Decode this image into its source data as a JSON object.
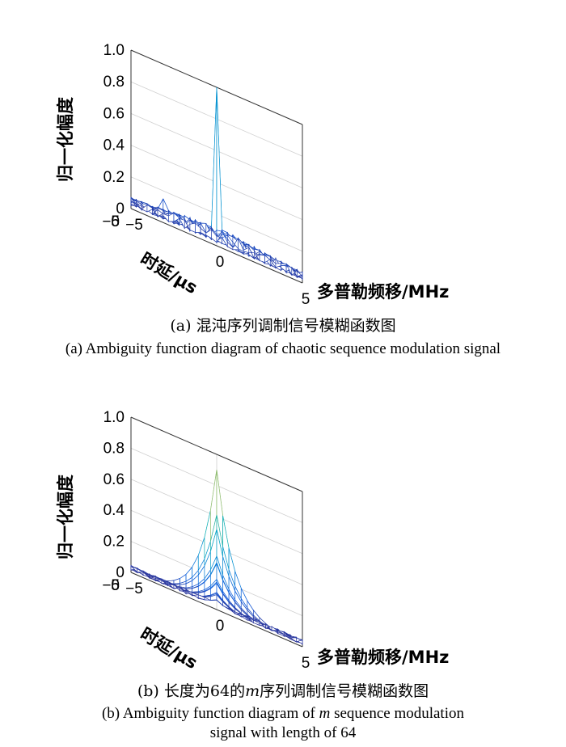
{
  "chart_data": [
    {
      "type": "surface",
      "panel": "a",
      "zlabel": "归一化幅度",
      "xlabel": "多普勒频移/MHz",
      "ylabel": "时延/μs",
      "xlim": [
        -5,
        5
      ],
      "ylim": [
        -5,
        5
      ],
      "zlim": [
        0,
        1.0
      ],
      "xticks": [
        "−5",
        "0",
        "5"
      ],
      "yticks": [
        "−5",
        "0",
        "5"
      ],
      "zticks": [
        "0",
        "0.2",
        "0.4",
        "0.6",
        "0.8",
        "1.0"
      ],
      "peak": {
        "x": 0,
        "y": 0,
        "z": 0.95
      },
      "sidelobe_level": 0.08,
      "colormap": "parula",
      "caption_cn": "(a) 混沌序列调制信号模糊函数图",
      "caption_en": "(a) Ambiguity function diagram of chaotic sequence modulation signal"
    },
    {
      "type": "surface",
      "panel": "b",
      "zlabel": "归一化幅度",
      "xlabel": "多普勒频移/MHz",
      "ylabel": "时延/μs",
      "xlim": [
        -5,
        5
      ],
      "ylim": [
        -5,
        5
      ],
      "zlim": [
        0,
        1.0
      ],
      "xticks": [
        "−5",
        "0",
        "5"
      ],
      "yticks": [
        "−5",
        "0",
        "5"
      ],
      "zticks": [
        "0",
        "0.2",
        "0.4",
        "0.6",
        "0.8",
        "1.0"
      ],
      "peak": {
        "x": 0,
        "y": 0,
        "z": 0.9
      },
      "sidelobe_level": 0.05,
      "colormap": "parula",
      "caption_cn_pre": "(b) 长度为64的",
      "caption_cn_m": "m",
      "caption_cn_post": "序列调制信号模糊函数图",
      "caption_en_pre": "(b) Ambiguity function diagram of ",
      "caption_en_m": "m",
      "caption_en_post": " sequence modulation",
      "caption_en_line2": "signal with length of 64"
    }
  ]
}
